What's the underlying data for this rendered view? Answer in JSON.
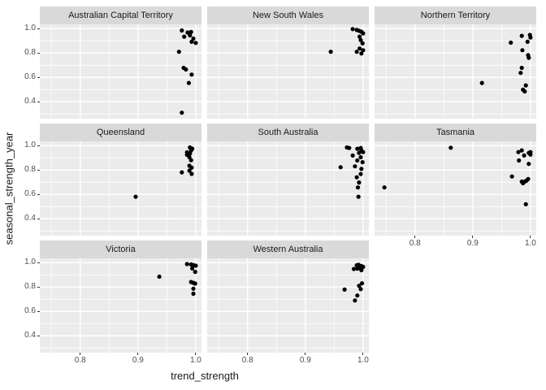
{
  "chart_data": {
    "type": "scatter",
    "xlabel": "trend_strength",
    "ylabel": "seasonal_strength_year",
    "xlim": [
      0.73,
      1.01
    ],
    "ylim": [
      0.265,
      1.035
    ],
    "x_ticks": [
      0.8,
      0.9,
      1.0
    ],
    "y_ticks": [
      1.0,
      0.8,
      0.6,
      0.4
    ],
    "x_minor": [
      0.75,
      0.85,
      0.95
    ],
    "y_minor": [
      0.3,
      0.5,
      0.7,
      0.9
    ],
    "grid": true,
    "legend": "none",
    "layout": {
      "cols": 3,
      "rows": 3
    },
    "colors": {
      "panel_bg": "#ebebeb",
      "strip_bg": "#d9d9d9",
      "grid": "#ffffff",
      "point": "#000000",
      "axis_text": "#4d4d4d",
      "tick_mark": "#333333",
      "title_text": "#1a1a1a"
    },
    "facets": [
      {
        "title": "Australian Capital Territory",
        "points": [
          [
            0.976,
            0.985
          ],
          [
            0.986,
            0.968
          ],
          [
            0.992,
            0.973
          ],
          [
            0.98,
            0.934
          ],
          [
            0.99,
            0.945
          ],
          [
            0.996,
            0.918
          ],
          [
            0.993,
            0.892
          ],
          [
            1.0,
            0.883
          ],
          [
            0.971,
            0.81
          ],
          [
            0.979,
            0.678
          ],
          [
            0.983,
            0.665
          ],
          [
            0.993,
            0.623
          ],
          [
            0.988,
            0.554
          ],
          [
            0.976,
            0.31
          ]
        ]
      },
      {
        "title": "New South Wales",
        "points": [
          [
            0.982,
            0.996
          ],
          [
            0.989,
            0.989
          ],
          [
            0.993,
            0.982
          ],
          [
            0.997,
            0.975
          ],
          [
            1.0,
            0.961
          ],
          [
            0.994,
            0.934
          ],
          [
            0.996,
            0.906
          ],
          [
            0.999,
            0.879
          ],
          [
            0.994,
            0.837
          ],
          [
            1.0,
            0.823
          ],
          [
            0.989,
            0.81
          ],
          [
            0.997,
            0.796
          ],
          [
            0.944,
            0.81
          ]
        ]
      },
      {
        "title": "Northern Territory",
        "points": [
          [
            0.985,
            0.941
          ],
          [
            0.999,
            0.948
          ],
          [
            1.0,
            0.927
          ],
          [
            0.966,
            0.885
          ],
          [
            0.995,
            0.892
          ],
          [
            0.986,
            0.823
          ],
          [
            0.996,
            0.782
          ],
          [
            0.997,
            0.761
          ],
          [
            0.985,
            0.678
          ],
          [
            0.983,
            0.637
          ],
          [
            0.916,
            0.554
          ],
          [
            0.992,
            0.534
          ],
          [
            0.987,
            0.499
          ],
          [
            0.99,
            0.485
          ]
        ]
      },
      {
        "title": "Queensland",
        "points": [
          [
            0.99,
            0.985
          ],
          [
            0.994,
            0.975
          ],
          [
            0.992,
            0.96
          ],
          [
            0.985,
            0.945
          ],
          [
            0.99,
            0.935
          ],
          [
            0.985,
            0.925
          ],
          [
            0.989,
            0.905
          ],
          [
            0.992,
            0.88
          ],
          [
            0.989,
            0.835
          ],
          [
            0.993,
            0.82
          ],
          [
            0.989,
            0.795
          ],
          [
            0.976,
            0.781
          ],
          [
            0.993,
            0.768
          ],
          [
            0.896,
            0.581
          ]
        ]
      },
      {
        "title": "South Australia",
        "points": [
          [
            0.972,
            0.985
          ],
          [
            0.976,
            0.981
          ],
          [
            0.99,
            0.974
          ],
          [
            0.996,
            0.981
          ],
          [
            0.997,
            0.961
          ],
          [
            0.993,
            0.94
          ],
          [
            1.0,
            0.947
          ],
          [
            0.982,
            0.919
          ],
          [
            0.996,
            0.905
          ],
          [
            0.99,
            0.878
          ],
          [
            0.999,
            0.864
          ],
          [
            0.961,
            0.823
          ],
          [
            0.986,
            0.83
          ],
          [
            0.997,
            0.809
          ],
          [
            0.996,
            0.767
          ],
          [
            0.989,
            0.74
          ],
          [
            0.993,
            0.698
          ],
          [
            0.991,
            0.657
          ],
          [
            0.992,
            0.581
          ]
        ]
      },
      {
        "title": "Tasmania",
        "points": [
          [
            0.862,
            0.983
          ],
          [
            0.747,
            0.657
          ],
          [
            0.979,
            0.947
          ],
          [
            0.985,
            0.961
          ],
          [
            0.989,
            0.919
          ],
          [
            0.997,
            0.94
          ],
          [
            1.0,
            0.926
          ],
          [
            1.0,
            0.947
          ],
          [
            0.98,
            0.878
          ],
          [
            0.997,
            0.85
          ],
          [
            0.968,
            0.747
          ],
          [
            0.985,
            0.705
          ],
          [
            0.987,
            0.692
          ],
          [
            0.99,
            0.705
          ],
          [
            0.993,
            0.712
          ],
          [
            0.996,
            0.726
          ],
          [
            0.992,
            0.519
          ]
        ]
      },
      {
        "title": "Victoria",
        "points": [
          [
            0.985,
            0.988
          ],
          [
            0.992,
            0.985
          ],
          [
            0.996,
            0.98
          ],
          [
            1.0,
            0.975
          ],
          [
            0.994,
            0.952
          ],
          [
            0.999,
            0.924
          ],
          [
            0.992,
            0.841
          ],
          [
            0.996,
            0.834
          ],
          [
            0.999,
            0.828
          ],
          [
            0.996,
            0.786
          ],
          [
            0.996,
            0.745
          ],
          [
            0.937,
            0.885
          ]
        ]
      },
      {
        "title": "Western Australia",
        "points": [
          [
            0.989,
            0.978
          ],
          [
            0.992,
            0.982
          ],
          [
            0.997,
            0.972
          ],
          [
            1.0,
            0.965
          ],
          [
            0.993,
            0.958
          ],
          [
            0.984,
            0.948
          ],
          [
            0.99,
            0.951
          ],
          [
            0.997,
            0.938
          ],
          [
            0.998,
            0.83
          ],
          [
            0.993,
            0.81
          ],
          [
            0.996,
            0.783
          ],
          [
            0.99,
            0.73
          ],
          [
            0.986,
            0.69
          ],
          [
            0.968,
            0.779
          ]
        ]
      }
    ]
  }
}
